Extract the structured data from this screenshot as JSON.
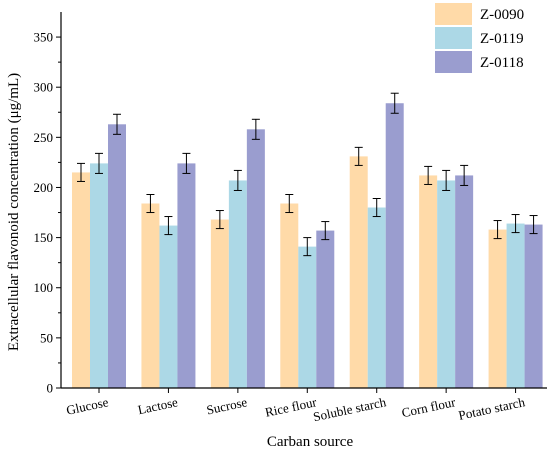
{
  "chart_data": {
    "type": "bar",
    "title": "",
    "xlabel": "Carban source",
    "ylabel": "Extracellular flavonoid concentration (μg/mL)",
    "ylim": [
      0,
      375
    ],
    "yticks": [
      0,
      50,
      100,
      150,
      200,
      250,
      300,
      350
    ],
    "grid": false,
    "legend_position": "top-right",
    "categories": [
      "Glucose",
      "Lactose",
      "Sucrose",
      "Rice flour",
      "Soluble starch",
      "Corn flour",
      "Potato starch"
    ],
    "series": [
      {
        "name": "Z-0090",
        "color": "#ffdaa8",
        "values": [
          215,
          184,
          168,
          184,
          231,
          212,
          158
        ],
        "errors": [
          9,
          9,
          9,
          9,
          9,
          9,
          9
        ]
      },
      {
        "name": "Z-0119",
        "color": "#acd8e6",
        "values": [
          224,
          162,
          207,
          141,
          180,
          207,
          164
        ],
        "errors": [
          10,
          9,
          10,
          9,
          9,
          10,
          9
        ]
      },
      {
        "name": "Z-0118",
        "color": "#9a9dcf",
        "values": [
          263,
          224,
          258,
          157,
          284,
          212,
          163
        ],
        "errors": [
          10,
          10,
          10,
          9,
          10,
          10,
          9
        ]
      }
    ]
  }
}
